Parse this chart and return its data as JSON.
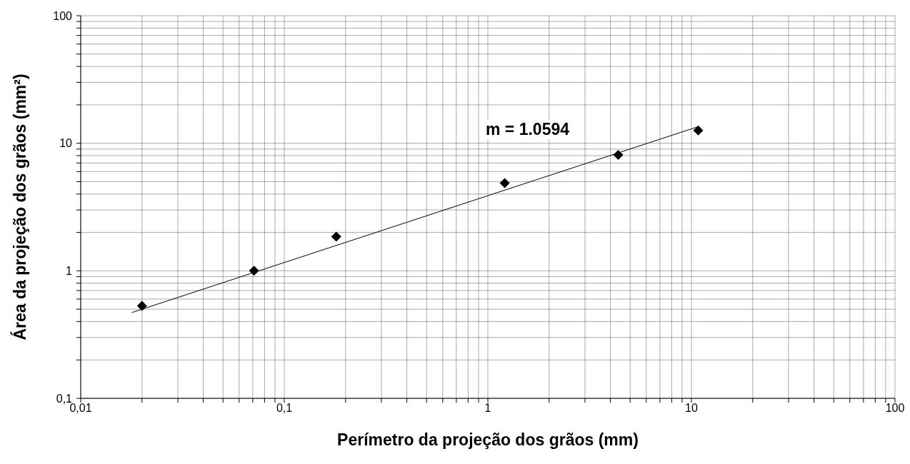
{
  "chart_data": {
    "type": "scatter",
    "xlabel": "Perímetro da projeção dos grãos (mm)",
    "ylabel": "Área da projeção dos grãos (mm²)",
    "log": "xy",
    "grid": true,
    "legend": false,
    "xlim": [
      0.01,
      100
    ],
    "ylim": [
      0.1,
      100
    ],
    "xticks": [
      {
        "value": 0.01,
        "label": "0,01"
      },
      {
        "value": 0.02,
        "label": null
      },
      {
        "value": 0.03,
        "label": null
      },
      {
        "value": 0.04,
        "label": null
      },
      {
        "value": 0.05,
        "label": null
      },
      {
        "value": 0.06,
        "label": null
      },
      {
        "value": 0.07,
        "label": null
      },
      {
        "value": 0.08,
        "label": null
      },
      {
        "value": 0.09,
        "label": null
      },
      {
        "value": 0.1,
        "label": "0,1"
      },
      {
        "value": 0.2,
        "label": null
      },
      {
        "value": 0.3,
        "label": null
      },
      {
        "value": 0.4,
        "label": null
      },
      {
        "value": 0.5,
        "label": null
      },
      {
        "value": 0.6,
        "label": null
      },
      {
        "value": 0.7,
        "label": null
      },
      {
        "value": 0.8,
        "label": null
      },
      {
        "value": 0.9,
        "label": null
      },
      1,
      {
        "value": 2,
        "label": null
      },
      {
        "value": 3,
        "label": null
      },
      {
        "value": 4,
        "label": null
      },
      {
        "value": 5,
        "label": null
      },
      {
        "value": 6,
        "label": null
      },
      {
        "value": 7,
        "label": null
      },
      {
        "value": 8,
        "label": null
      },
      {
        "value": 9,
        "label": null
      },
      10,
      {
        "value": 20,
        "label": null
      },
      {
        "value": 30,
        "label": null
      },
      {
        "value": 40,
        "label": null
      },
      {
        "value": 50,
        "label": null
      },
      {
        "value": 60,
        "label": null
      },
      {
        "value": 70,
        "label": null
      },
      {
        "value": 80,
        "label": null
      },
      {
        "value": 90,
        "label": null
      },
      100
    ],
    "yticks": [
      {
        "value": 0.1,
        "label": "0,1"
      },
      {
        "value": 0.2,
        "label": null
      },
      {
        "value": 0.3,
        "label": null
      },
      {
        "value": 0.4,
        "label": null
      },
      {
        "value": 0.5,
        "label": null
      },
      {
        "value": 0.6,
        "label": null
      },
      {
        "value": 0.7,
        "label": null
      },
      {
        "value": 0.8,
        "label": null
      },
      {
        "value": 0.9,
        "label": null
      },
      1,
      {
        "value": 2,
        "label": null
      },
      {
        "value": 3,
        "label": null
      },
      {
        "value": 4,
        "label": null
      },
      {
        "value": 5,
        "label": null
      },
      {
        "value": 6,
        "label": null
      },
      {
        "value": 7,
        "label": null
      },
      {
        "value": 8,
        "label": null
      },
      {
        "value": 9,
        "label": null
      },
      10,
      {
        "value": 20,
        "label": null
      },
      {
        "value": 30,
        "label": null
      },
      {
        "value": 40,
        "label": null
      },
      {
        "value": 50,
        "label": null
      },
      {
        "value": 60,
        "label": null
      },
      {
        "value": 70,
        "label": null
      },
      {
        "value": 80,
        "label": null
      },
      {
        "value": 90,
        "label": null
      },
      100
    ],
    "annotations": [
      "m = 1.0594"
    ],
    "series": [
      {
        "color": "#000000",
        "marker": "diamond",
        "x": [
          0.02,
          0.071,
          0.18,
          1.21,
          4.37,
          10.8
        ],
        "values": [
          0.53,
          1.0,
          1.85,
          4.87,
          8.1,
          12.6
        ]
      },
      {
        "type": "line",
        "color": "#000000",
        "marker": "none",
        "line_style": "solid",
        "x": [
          0.0178,
          10.8
        ],
        "values": [
          0.47,
          13.5
        ]
      }
    ]
  }
}
